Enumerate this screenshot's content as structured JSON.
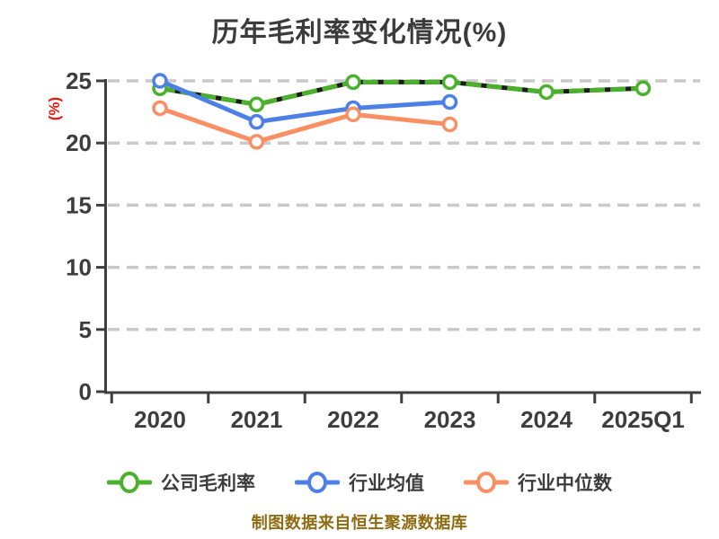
{
  "chart": {
    "title": "历年毛利率变化情况(%)",
    "y_unit": "(%)",
    "caption": "制图数据来自恒生聚源数据库"
  },
  "legend": {
    "items": [
      {
        "label": "公司毛利率",
        "color": "#4bb02c"
      },
      {
        "label": "行业均值",
        "color": "#4d80e6"
      },
      {
        "label": "行业中位数",
        "color": "#fa8f63"
      }
    ]
  },
  "chart_data": {
    "type": "line",
    "title": "历年毛利率变化情况(%)",
    "xlabel": "",
    "ylabel": "(%)",
    "categories": [
      "2020",
      "2021",
      "2022",
      "2023",
      "2024",
      "2025Q1"
    ],
    "series": [
      {
        "name": "公司毛利率",
        "color": "#4bb02c",
        "style": "dashed",
        "values": [
          24.4,
          23.1,
          24.9,
          24.9,
          24.1,
          24.4
        ]
      },
      {
        "name": "行业均值",
        "color": "#4d80e6",
        "style": "solid",
        "values": [
          25.0,
          21.7,
          22.8,
          23.3,
          null,
          null
        ]
      },
      {
        "name": "行业中位数",
        "color": "#fa8f63",
        "style": "solid",
        "values": [
          22.8,
          20.1,
          22.3,
          21.5,
          null,
          null
        ]
      }
    ],
    "ylim": [
      0,
      25
    ],
    "yticks": [
      0,
      5,
      10,
      15,
      20,
      25
    ],
    "grid": "dashed-horizontal",
    "legend_position": "bottom",
    "colors": {
      "title_text": "#3b3b3b",
      "axis_text": "#3d3d3d",
      "axis_line": "#3f3f3f",
      "gridline": "#c9c9c9",
      "y_unit_label": "#e8160c",
      "caption_text": "#8e6c12",
      "marker_fill": "#ffffff",
      "dash_underlay": "#1b1b1b"
    }
  }
}
